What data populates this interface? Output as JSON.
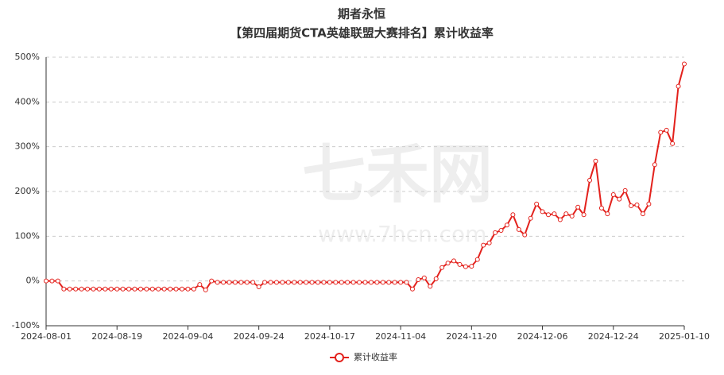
{
  "chart_data": {
    "type": "line",
    "title": "期者永恒",
    "subtitle": "【第四届期货CTA英雄联盟大赛排名】累计收益率",
    "watermark": "七禾网",
    "watermark_url": "www.7hcn.com",
    "categories": [
      "2024-08-01",
      null,
      null,
      null,
      null,
      null,
      null,
      null,
      null,
      null,
      null,
      null,
      "2024-08-19",
      null,
      null,
      null,
      null,
      null,
      null,
      null,
      null,
      null,
      null,
      null,
      "2024-09-04",
      null,
      null,
      null,
      null,
      null,
      null,
      null,
      null,
      null,
      null,
      null,
      "2024-09-24",
      null,
      null,
      null,
      null,
      null,
      null,
      null,
      null,
      null,
      null,
      null,
      "2024-10-17",
      null,
      null,
      null,
      null,
      null,
      null,
      null,
      null,
      null,
      null,
      null,
      "2024-11-04",
      null,
      null,
      null,
      null,
      null,
      null,
      null,
      null,
      null,
      null,
      null,
      "2024-11-20",
      null,
      null,
      null,
      null,
      null,
      null,
      null,
      null,
      null,
      null,
      null,
      "2024-12-06",
      null,
      null,
      null,
      null,
      null,
      null,
      null,
      null,
      null,
      null,
      null,
      "2024-12-24",
      null,
      null,
      null,
      null,
      null,
      null,
      null,
      null,
      null,
      null,
      null,
      "2025-01-10"
    ],
    "series": [
      {
        "name": "累计收益率",
        "color": "#e3211c",
        "values": [
          0,
          0,
          0,
          -18,
          -18,
          -18,
          -18,
          -18,
          -18,
          -18,
          -18,
          -18,
          -18,
          -18,
          -18,
          -18,
          -18,
          -18,
          -18,
          -18,
          -18,
          -18,
          -18,
          -18,
          -18,
          -18,
          -8,
          -20,
          0,
          -3,
          -3,
          -3,
          -3,
          -3,
          -3,
          -3,
          -13,
          -3,
          -3,
          -3,
          -3,
          -3,
          -3,
          -3,
          -3,
          -3,
          -3,
          -3,
          -3,
          -3,
          -3,
          -3,
          -3,
          -3,
          -3,
          -3,
          -3,
          -3,
          -3,
          -3,
          -3,
          -3,
          -18,
          3,
          7,
          -12,
          5,
          30,
          40,
          45,
          37,
          32,
          33,
          48,
          80,
          85,
          108,
          113,
          125,
          148,
          115,
          103,
          140,
          172,
          155,
          148,
          150,
          137,
          150,
          145,
          165,
          148,
          225,
          268,
          163,
          150,
          193,
          183,
          202,
          168,
          170,
          150,
          172,
          260,
          332,
          337,
          307,
          435,
          485
        ]
      }
    ],
    "ylim": [
      -100,
      500
    ],
    "yticks": [
      {
        "value": -100,
        "label": "-100%"
      },
      {
        "value": 0,
        "label": "0%"
      },
      {
        "value": 100,
        "label": "100%"
      },
      {
        "value": 200,
        "label": "200%"
      },
      {
        "value": 300,
        "label": "300%"
      },
      {
        "value": 400,
        "label": "400%"
      },
      {
        "value": 500,
        "label": "500%"
      }
    ],
    "grid": true,
    "legend": "bottom"
  }
}
